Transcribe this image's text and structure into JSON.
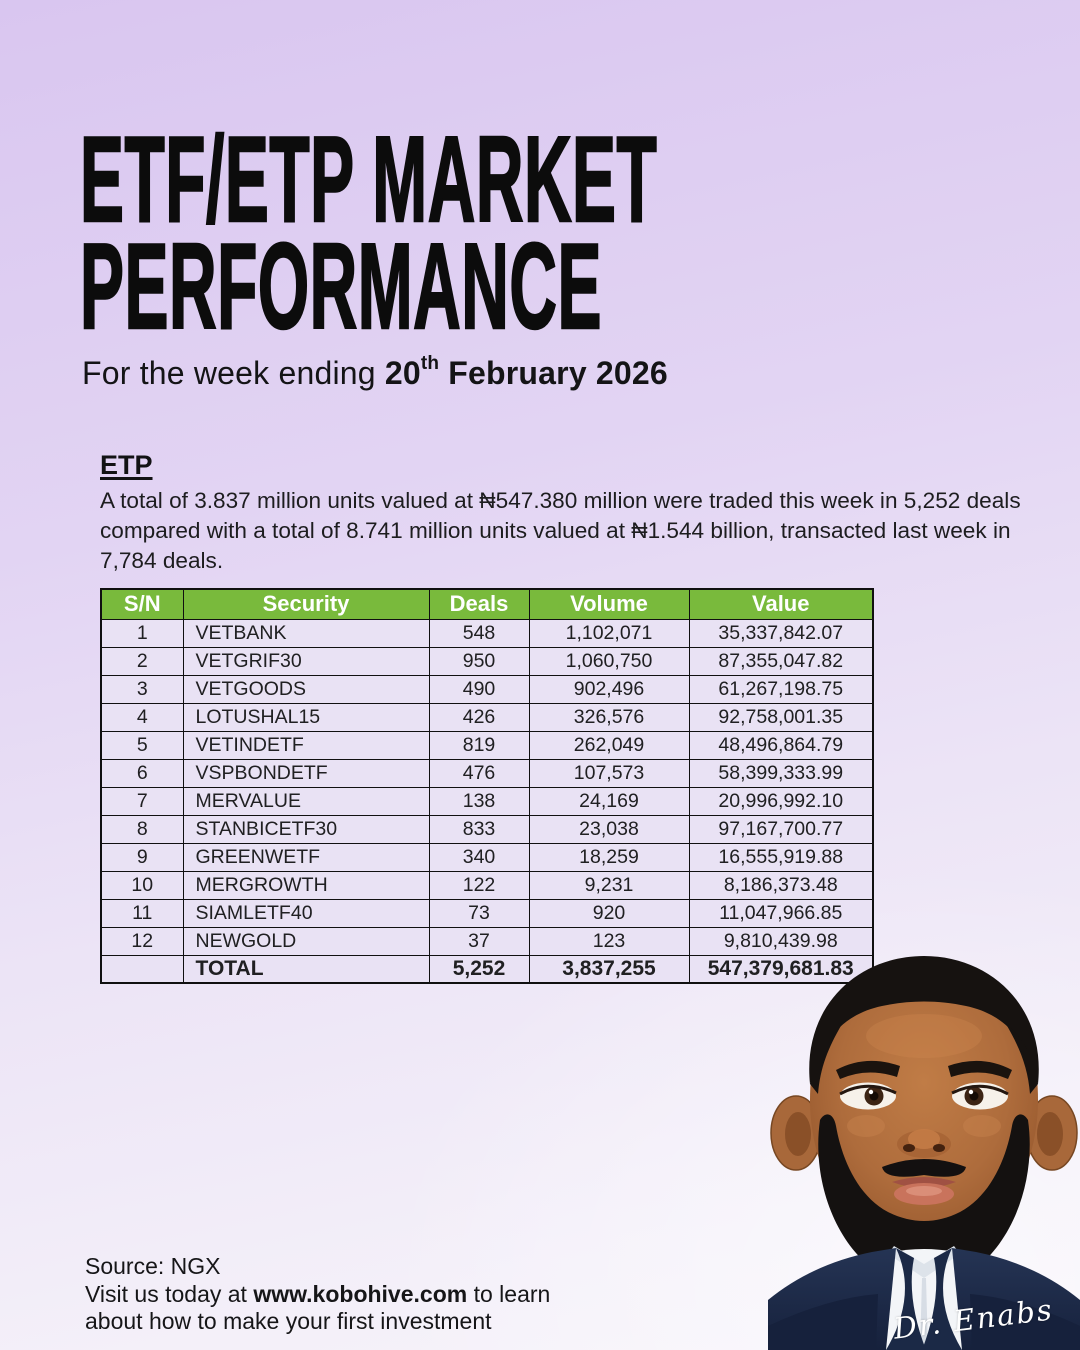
{
  "header": {
    "title_line1": "ETF/ETP MARKET",
    "title_line2": "PERFORMANCE",
    "subtitle_prefix": "For the week ending ",
    "date_day": "20",
    "date_ordinal": "th",
    "date_rest": " February 2026"
  },
  "section": {
    "heading": "ETP",
    "summary": "A total of 3.837 million units valued at ₦547.380 million were traded this week in 5,252 deals compared with a total of 8.741 million units valued at ₦1.544 billion, transacted last week in 7,784 deals."
  },
  "table": {
    "headers": [
      "S/N",
      "Security",
      "Deals",
      "Volume",
      "Value"
    ],
    "rows": [
      [
        "1",
        "VETBANK",
        "548",
        "1,102,071",
        "35,337,842.07"
      ],
      [
        "2",
        "VETGRIF30",
        "950",
        "1,060,750",
        "87,355,047.82"
      ],
      [
        "3",
        "VETGOODS",
        "490",
        "902,496",
        "61,267,198.75"
      ],
      [
        "4",
        "LOTUSHAL15",
        "426",
        "326,576",
        "92,758,001.35"
      ],
      [
        "5",
        "VETINDETF",
        "819",
        "262,049",
        "48,496,864.79"
      ],
      [
        "6",
        "VSPBONDETF",
        "476",
        "107,573",
        "58,399,333.99"
      ],
      [
        "7",
        "MERVALUE",
        "138",
        "24,169",
        "20,996,992.10"
      ],
      [
        "8",
        "STANBICETF30",
        "833",
        "23,038",
        "97,167,700.77"
      ],
      [
        "9",
        "GREENWETF",
        "340",
        "18,259",
        "16,555,919.88"
      ],
      [
        "10",
        "MERGROWTH",
        "122",
        "9,231",
        "8,186,373.48"
      ],
      [
        "11",
        "SIAMLETF40",
        "73",
        "920",
        "11,047,966.85"
      ],
      [
        "12",
        "NEWGOLD",
        "37",
        "123",
        "9,810,439.98"
      ]
    ],
    "total": [
      "",
      "TOTAL",
      "5,252",
      "3,837,255",
      "547,379,681.83"
    ]
  },
  "footer": {
    "source": "Source: NGX",
    "visit_prefix": "Visit us today at ",
    "visit_site": "www.kobohive.com",
    "visit_suffix": " to learn",
    "visit_line2": "about how to make your first investment"
  },
  "avatar": {
    "signature": "Dr. Enabs"
  },
  "colors": {
    "table_header_green": "#79ba3c",
    "background_lavender": "#d9c6f0",
    "suit_navy": "#1d2a47",
    "text_black": "#0c0c0c"
  }
}
